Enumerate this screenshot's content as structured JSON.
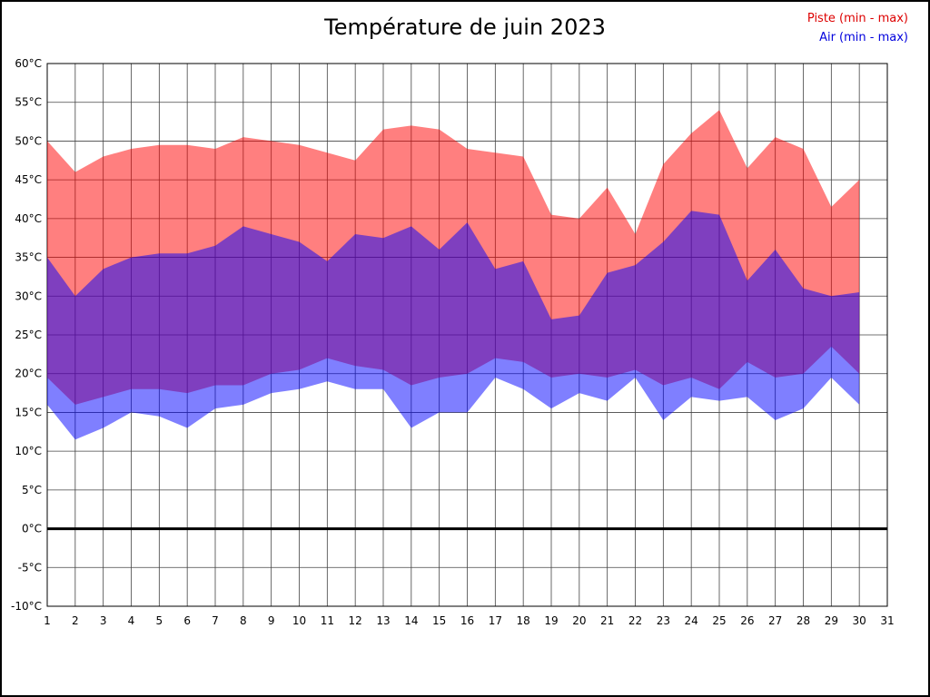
{
  "page": {
    "background": "#ffffff",
    "border_color": "#000000"
  },
  "chart_data": {
    "type": "area",
    "title": "Température de juin 2023",
    "xlabel": "",
    "ylabel": "",
    "xlim": [
      1,
      31
    ],
    "ylim": [
      -10,
      60
    ],
    "ytick_step": 5,
    "grid": true,
    "zero_line": 0,
    "legend_position": "top-right",
    "ytick_labels": [
      "60°C",
      "55°C",
      "50°C",
      "45°C",
      "40°C",
      "35°C",
      "30°C",
      "25°C",
      "20°C",
      "15°C",
      "10°C",
      "5°C",
      "0°C",
      "-5°C",
      "-10°C"
    ],
    "xtick_labels": [
      "1",
      "2",
      "3",
      "4",
      "5",
      "6",
      "7",
      "8",
      "9",
      "10",
      "11",
      "12",
      "13",
      "14",
      "15",
      "16",
      "17",
      "18",
      "19",
      "20",
      "21",
      "22",
      "23",
      "24",
      "25",
      "26",
      "27",
      "28",
      "29",
      "30",
      "31"
    ],
    "x": [
      1,
      2,
      3,
      4,
      5,
      6,
      7,
      8,
      9,
      10,
      11,
      12,
      13,
      14,
      15,
      16,
      17,
      18,
      19,
      20,
      21,
      22,
      23,
      24,
      25,
      26,
      27,
      28,
      29,
      30
    ],
    "series": [
      {
        "key": "piste",
        "name": "Piste (min - max)",
        "legend_color": "#dd0000",
        "fill": "rgba(255,0,0,0.5)",
        "max": [
          50,
          46,
          48,
          49,
          49.5,
          49.5,
          49,
          50.5,
          50,
          49.5,
          48.5,
          47.5,
          51.5,
          52,
          51.5,
          49,
          48.5,
          48,
          40.5,
          40,
          44,
          38,
          47,
          51,
          54,
          46.5,
          50.5,
          49,
          41.5,
          45
        ],
        "min": [
          19.5,
          16,
          17,
          18,
          18,
          17.5,
          18.5,
          18.5,
          20,
          20.5,
          22,
          21,
          20.5,
          18.5,
          19.5,
          20,
          22,
          21.5,
          19.5,
          20,
          19.5,
          20.5,
          18.5,
          19.5,
          18,
          21.5,
          19.5,
          20,
          23.5,
          20
        ]
      },
      {
        "key": "air",
        "name": "Air (min - max)",
        "legend_color": "#0000dd",
        "fill": "rgba(0,0,255,0.5)",
        "max": [
          35,
          30,
          33.5,
          35,
          35.5,
          35.5,
          36.5,
          39,
          38,
          37,
          34.5,
          38,
          37.5,
          39,
          36,
          39.5,
          33.5,
          34.5,
          27,
          27.5,
          33,
          34,
          37,
          41,
          40.5,
          32,
          36,
          31,
          30,
          30.5
        ],
        "min": [
          16,
          11.5,
          13,
          15,
          14.5,
          13,
          15.5,
          16,
          17.5,
          18,
          19,
          18,
          18,
          13,
          15,
          15,
          19.5,
          18,
          15.5,
          17.5,
          16.5,
          19.5,
          14,
          17,
          16.5,
          17,
          14,
          15.5,
          19.5,
          16
        ]
      }
    ]
  }
}
